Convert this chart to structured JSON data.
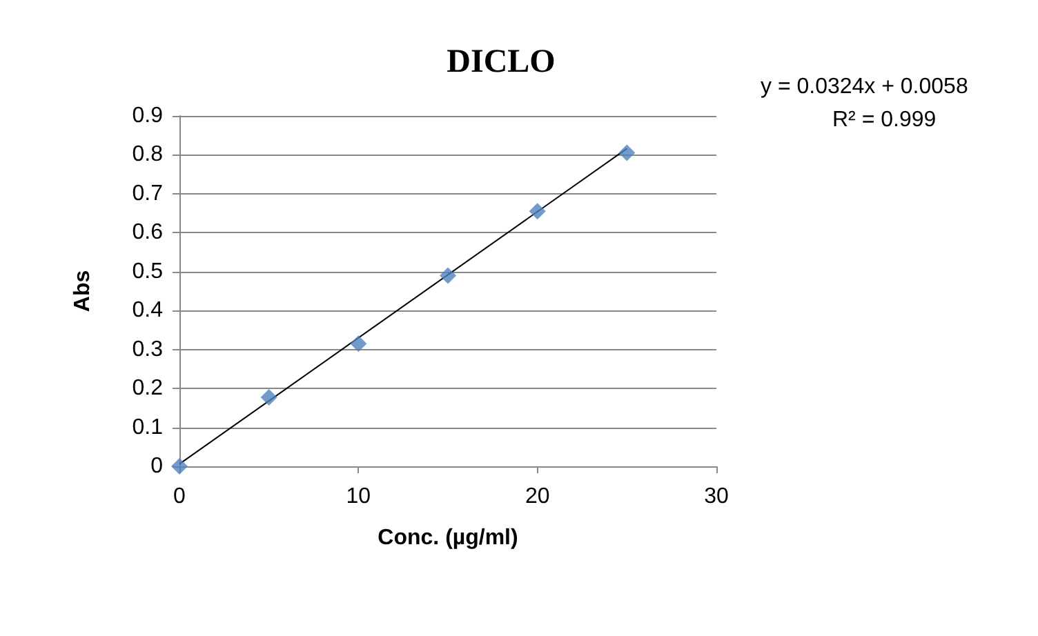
{
  "chart_data": {
    "type": "scatter",
    "title": "DICLO",
    "xlabel": "Conc. (µg/ml)",
    "ylabel": "Abs",
    "x": [
      0,
      5,
      10,
      15,
      20,
      25
    ],
    "series": [
      {
        "color": "#4f81bd",
        "values": [
          0,
          0.177,
          0.315,
          0.49,
          0.655,
          0.805
        ]
      },
      {
        "type": "line",
        "color": "#000000",
        "x": [
          0,
          25
        ],
        "values": [
          0.006,
          0.816
        ],
        "marker": "none"
      }
    ],
    "annotations": [
      "y = 0.0324x + 0.0058",
      "R² = 0.999"
    ],
    "xlim": [
      0,
      30
    ],
    "xticks": [
      0,
      10,
      20,
      30
    ],
    "ylim": [
      0,
      0.9
    ],
    "yticks": [
      0,
      0.1,
      0.2,
      0.3,
      0.4,
      0.5,
      0.6,
      0.7,
      0.8,
      0.9
    ],
    "grid": "y",
    "marker": "diamond",
    "line_style": "solid"
  }
}
